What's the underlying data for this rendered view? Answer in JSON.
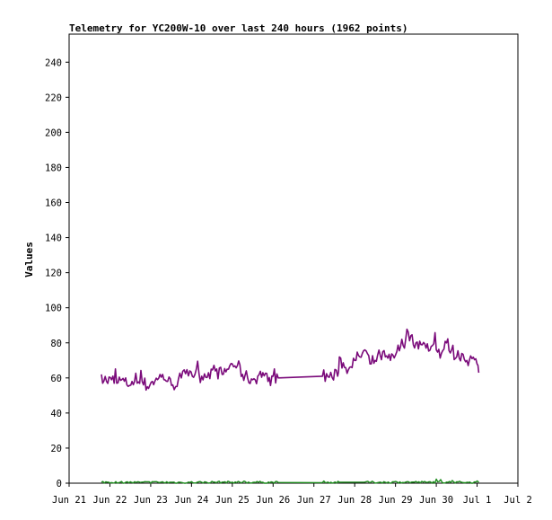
{
  "chart_data": {
    "type": "line",
    "title": "Telemetry for YC200W-10 over last 240 hours (1962 points)",
    "xlabel": "",
    "ylabel": "Values",
    "xlim": [
      "2024-06-21",
      "2024-07-02"
    ],
    "ylim": [
      0,
      256
    ],
    "x_tick_labels": [
      "Jun 21",
      "Jun 22",
      "Jun 23",
      "Jun 24",
      "Jun 25",
      "Jun 26",
      "Jun 27",
      "Jun 28",
      "Jun 29",
      "Jun 30",
      "Jul 1",
      "Jul 2"
    ],
    "y_ticks": [
      0,
      20,
      40,
      60,
      80,
      100,
      120,
      140,
      160,
      180,
      200,
      220,
      240
    ],
    "grid": false,
    "legend": false,
    "series": [
      {
        "color": "#7a0a7a",
        "points": [
          [
            "2024-06-21T19:00",
            62
          ],
          [
            "2024-06-21T22:00",
            58
          ],
          [
            "2024-06-22T01:00",
            59
          ],
          [
            "2024-06-22T04:00",
            57
          ],
          [
            "2024-06-22T07:00",
            59
          ],
          [
            "2024-06-22T10:00",
            56
          ],
          [
            "2024-06-22T13:00",
            58
          ],
          [
            "2024-06-22T16:00",
            57
          ],
          [
            "2024-06-22T19:00",
            58
          ],
          [
            "2024-06-22T22:00",
            55
          ],
          [
            "2024-06-23T01:00",
            58
          ],
          [
            "2024-06-23T04:00",
            59
          ],
          [
            "2024-06-23T07:00",
            62
          ],
          [
            "2024-06-23T10:00",
            58
          ],
          [
            "2024-06-23T13:00",
            56
          ],
          [
            "2024-06-23T18:00",
            60
          ],
          [
            "2024-06-23T23:00",
            64
          ],
          [
            "2024-06-24T02:00",
            62
          ],
          [
            "2024-06-24T06:00",
            61
          ],
          [
            "2024-06-24T10:00",
            63
          ],
          [
            "2024-06-24T14:00",
            64
          ],
          [
            "2024-06-24T18:00",
            62
          ],
          [
            "2024-06-24T21:00",
            65
          ],
          [
            "2024-06-25T00:00",
            68
          ],
          [
            "2024-06-25T03:00",
            67
          ],
          [
            "2024-06-25T06:00",
            62
          ],
          [
            "2024-06-25T09:00",
            60
          ],
          [
            "2024-06-25T12:00",
            59
          ],
          [
            "2024-06-25T15:00",
            61
          ],
          [
            "2024-06-25T18:00",
            63
          ],
          [
            "2024-06-25T21:00",
            58
          ],
          [
            "2024-06-26T00:00",
            61
          ],
          [
            "2024-06-26T03:00",
            60
          ],
          [
            "2024-06-27T05:00",
            61
          ],
          [
            "2024-06-27T14:00",
            61
          ],
          [
            "2024-06-27T15:00",
            72
          ],
          [
            "2024-06-27T18:00",
            66
          ],
          [
            "2024-06-27T21:00",
            66
          ],
          [
            "2024-06-28T00:00",
            70
          ],
          [
            "2024-06-28T03:00",
            72
          ],
          [
            "2024-06-28T06:00",
            76
          ],
          [
            "2024-06-28T09:00",
            68
          ],
          [
            "2024-06-28T12:00",
            70
          ],
          [
            "2024-06-28T15:00",
            73
          ],
          [
            "2024-06-28T18:00",
            72
          ],
          [
            "2024-06-28T21:00",
            70
          ],
          [
            "2024-06-29T00:00",
            73
          ],
          [
            "2024-06-29T03:00",
            78
          ],
          [
            "2024-06-29T06:00",
            82
          ],
          [
            "2024-06-29T09:00",
            84
          ],
          [
            "2024-06-29T12:00",
            80
          ],
          [
            "2024-06-29T15:00",
            79
          ],
          [
            "2024-06-29T18:00",
            77
          ],
          [
            "2024-06-29T21:00",
            78
          ],
          [
            "2024-06-30T00:00",
            76
          ],
          [
            "2024-06-30T03:00",
            74
          ],
          [
            "2024-06-30T06:00",
            80
          ],
          [
            "2024-06-30T09:00",
            76
          ],
          [
            "2024-06-30T12:00",
            72
          ],
          [
            "2024-06-30T15:00",
            74
          ],
          [
            "2024-06-30T18:00",
            70
          ],
          [
            "2024-06-30T21:00",
            71
          ],
          [
            "2024-07-01T00:00",
            68
          ],
          [
            "2024-07-01T01:00",
            63
          ]
        ],
        "jitter": 4
      },
      {
        "color": "#1e8c1e",
        "points": [
          [
            "2024-06-21T19:00",
            0.6
          ],
          [
            "2024-06-22T06:00",
            0.5
          ],
          [
            "2024-06-22T18:00",
            0.4
          ],
          [
            "2024-06-23T06:00",
            0.5
          ],
          [
            "2024-06-23T18:00",
            0.4
          ],
          [
            "2024-06-24T06:00",
            0.5
          ],
          [
            "2024-06-24T18:00",
            0.6
          ],
          [
            "2024-06-25T06:00",
            0.5
          ],
          [
            "2024-06-25T18:00",
            0.5
          ],
          [
            "2024-06-26T03:00",
            0.4
          ],
          [
            "2024-06-27T05:00",
            0.3
          ],
          [
            "2024-06-27T15:00",
            0.5
          ],
          [
            "2024-06-28T06:00",
            0.6
          ],
          [
            "2024-06-28T18:00",
            0.5
          ],
          [
            "2024-06-29T06:00",
            0.6
          ],
          [
            "2024-06-29T18:00",
            0.5
          ],
          [
            "2024-06-30T06:00",
            0.6
          ],
          [
            "2024-06-30T18:00",
            0.5
          ],
          [
            "2024-07-01T01:00",
            0.4
          ]
        ],
        "jitter": 0.6
      }
    ]
  }
}
